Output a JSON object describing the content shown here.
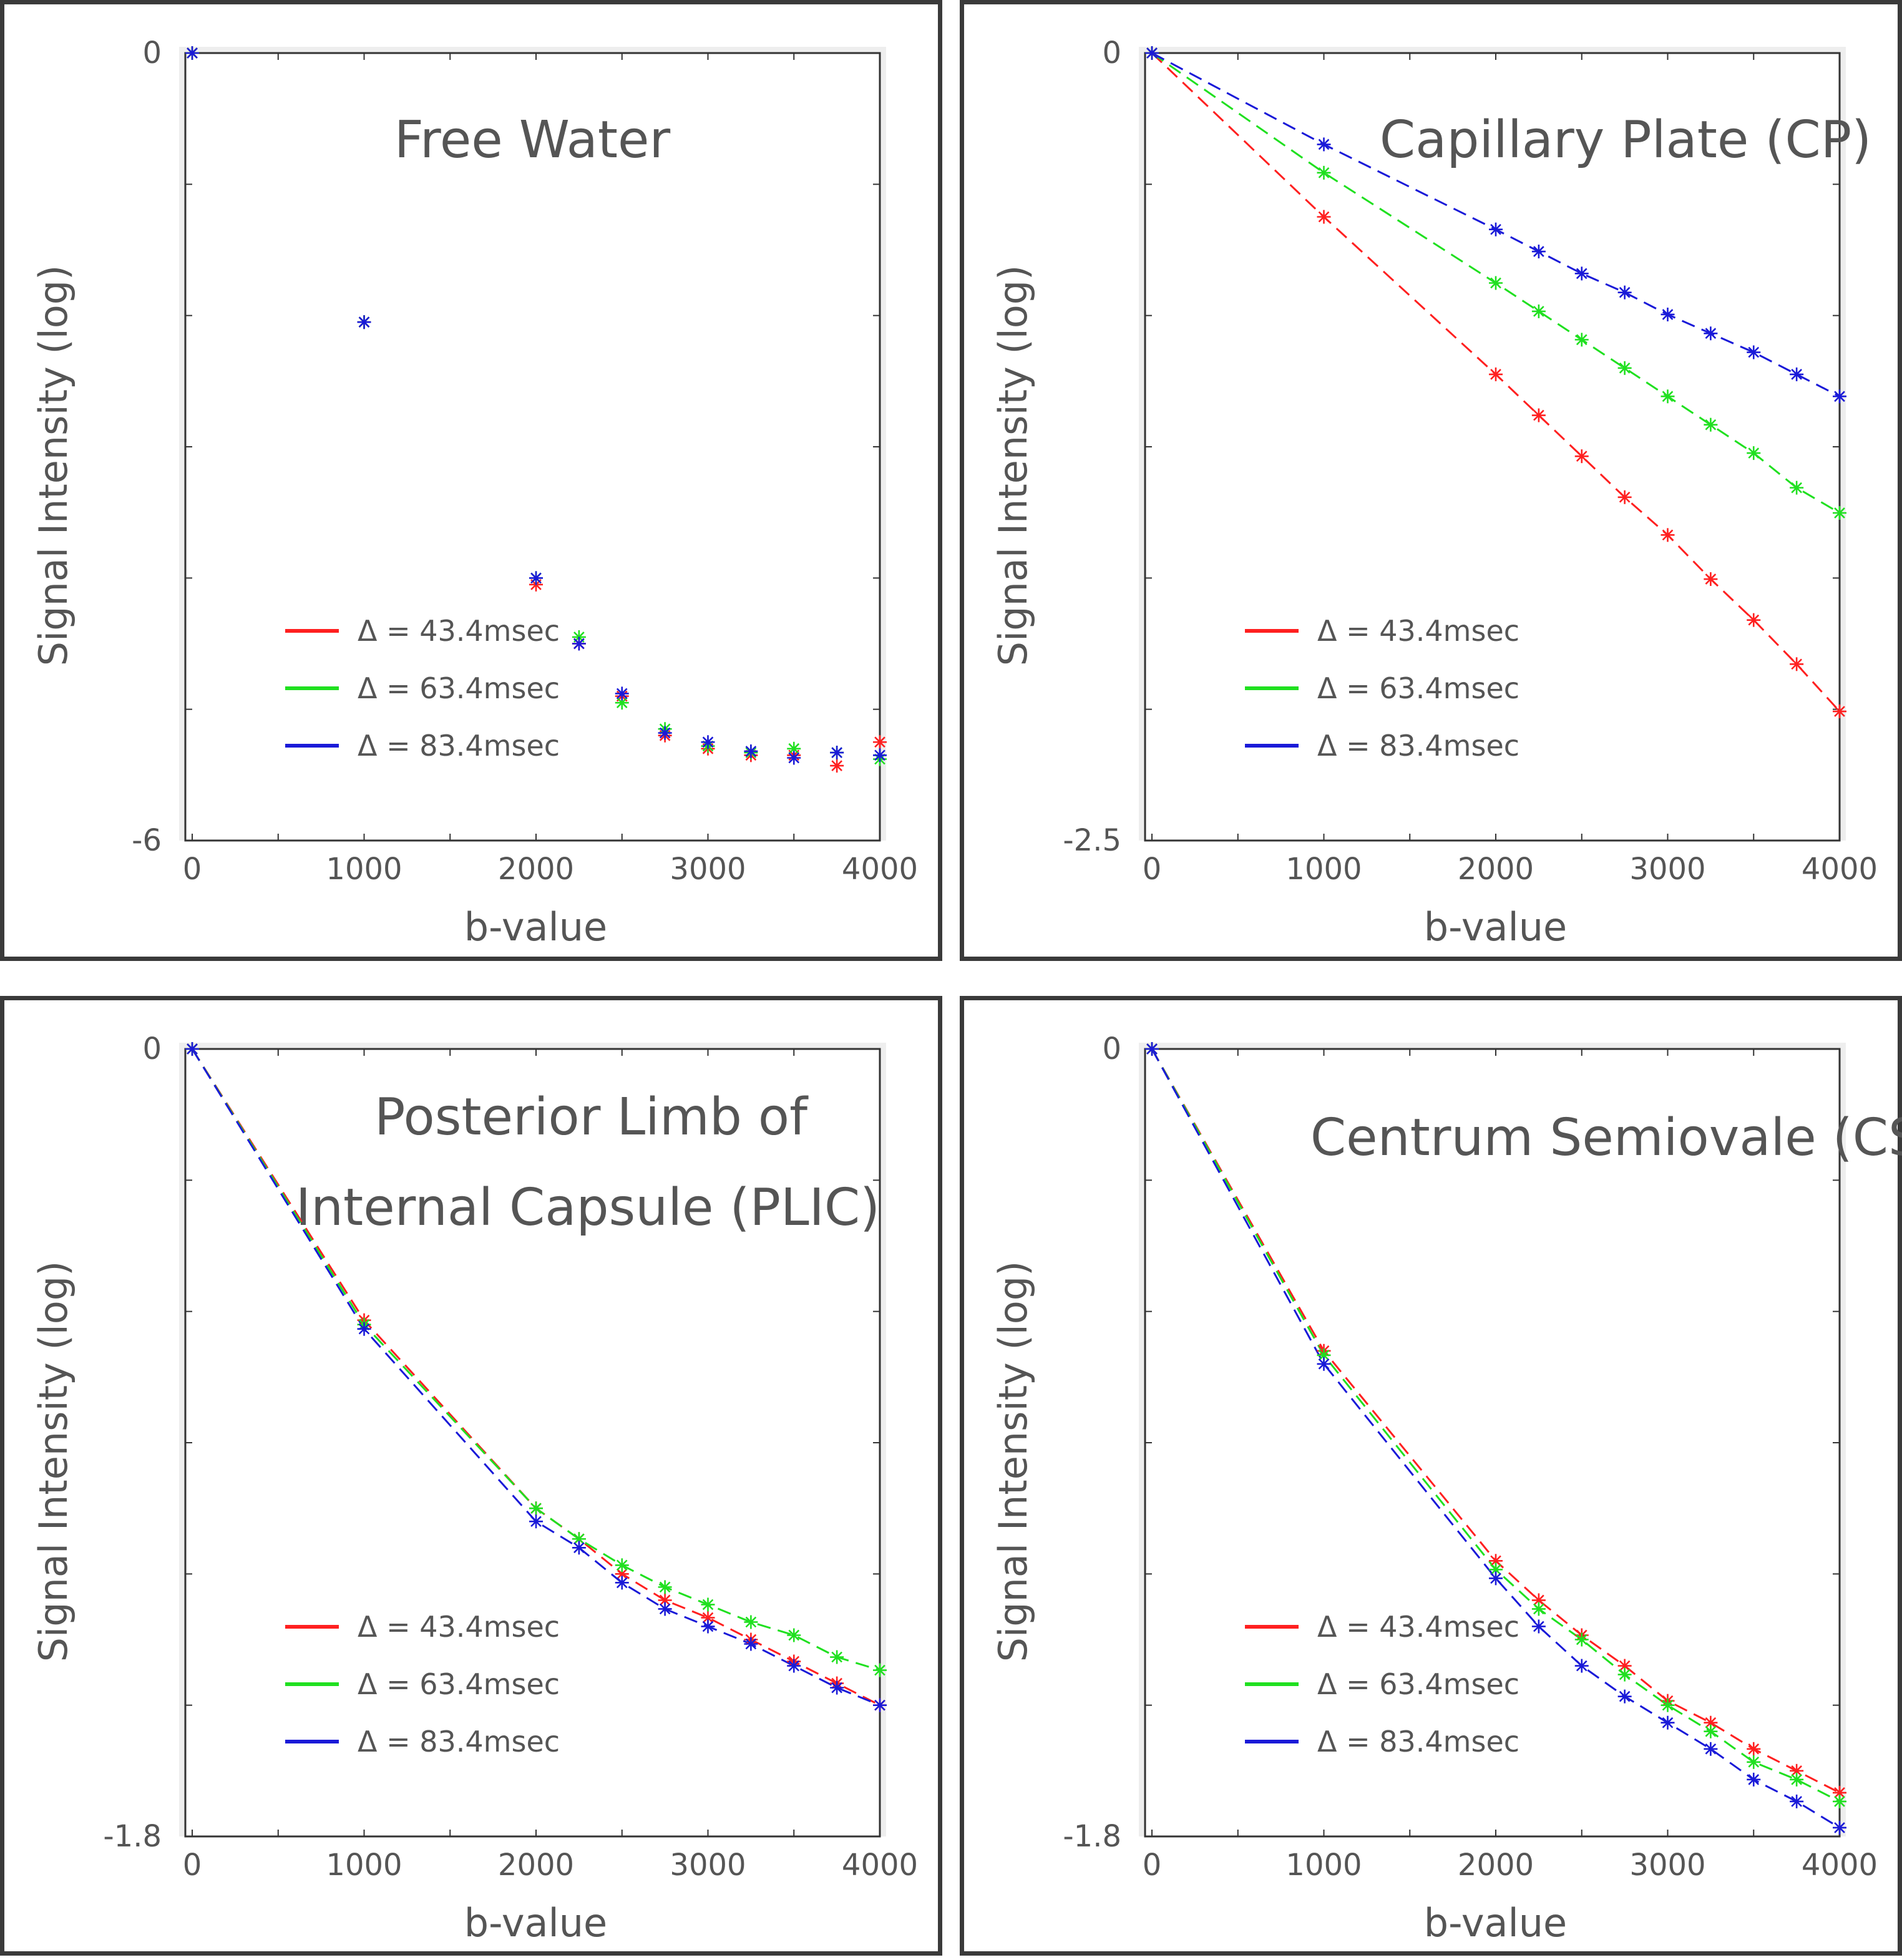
{
  "chart_data": [
    {
      "type": "scatter",
      "title_lines": [
        "Free Water"
      ],
      "xlabel": "b-value",
      "ylabel": "Signal Intensity (log)",
      "xlim": [
        -40,
        4000
      ],
      "ylim": [
        -6,
        0
      ],
      "xticks": [
        0,
        1000,
        2000,
        3000,
        4000
      ],
      "yticks": [
        0,
        -6
      ],
      "fit_lines": false,
      "legend": {
        "placement": "lower-left",
        "entries": [
          "Δ = 43.4msec",
          "Δ = 63.4msec",
          "Δ = 83.4msec"
        ]
      },
      "series": [
        {
          "name": "Δ = 43.4msec",
          "color": "#ff2020",
          "x": [
            0,
            1000,
            2000,
            2250,
            2500,
            2750,
            3000,
            3250,
            3500,
            3750,
            4000
          ],
          "y": [
            0,
            -2.05,
            -4.05,
            -4.5,
            -4.9,
            -5.2,
            -5.3,
            -5.35,
            -5.35,
            -5.43,
            -5.25
          ]
        },
        {
          "name": "Δ = 63.4msec",
          "color": "#20e020",
          "x": [
            0,
            1000,
            2000,
            2250,
            2500,
            2750,
            3000,
            3250,
            3500,
            3750,
            4000
          ],
          "y": [
            0,
            -2.05,
            -4.0,
            -4.45,
            -4.95,
            -5.15,
            -5.28,
            -5.33,
            -5.3,
            -5.33,
            -5.38
          ]
        },
        {
          "name": "Δ = 83.4msec",
          "color": "#1a1ad8",
          "x": [
            0,
            1000,
            2000,
            2250,
            2500,
            2750,
            3000,
            3250,
            3500,
            3750,
            4000
          ],
          "y": [
            0,
            -2.05,
            -4.0,
            -4.5,
            -4.88,
            -5.18,
            -5.25,
            -5.32,
            -5.37,
            -5.33,
            -5.35
          ]
        }
      ]
    },
    {
      "type": "line",
      "title_lines": [
        "Capillary Plate (CP)"
      ],
      "xlabel": "b-value",
      "ylabel": "Signal Intensity (log)",
      "xlim": [
        -40,
        4000
      ],
      "ylim": [
        -2.5,
        0
      ],
      "xticks": [
        0,
        1000,
        2000,
        3000,
        4000
      ],
      "yticks": [
        0,
        -2.5
      ],
      "fit_lines": true,
      "legend": {
        "placement": "lower-left",
        "entries": [
          "Δ = 43.4msec",
          "Δ = 63.4msec",
          "Δ = 83.4msec"
        ]
      },
      "series": [
        {
          "name": "Δ = 43.4msec",
          "color": "#ff2020",
          "x": [
            0,
            1000,
            2000,
            2250,
            2500,
            2750,
            3000,
            3250,
            3500,
            3750,
            4000
          ],
          "y": [
            0,
            -0.52,
            -1.02,
            -1.15,
            -1.28,
            -1.41,
            -1.53,
            -1.67,
            -1.8,
            -1.94,
            -2.09
          ]
        },
        {
          "name": "Δ = 63.4msec",
          "color": "#20e020",
          "x": [
            0,
            1000,
            2000,
            2250,
            2500,
            2750,
            3000,
            3250,
            3500,
            3750,
            4000
          ],
          "y": [
            0,
            -0.38,
            -0.73,
            -0.82,
            -0.91,
            -1.0,
            -1.09,
            -1.18,
            -1.27,
            -1.38,
            -1.46
          ]
        },
        {
          "name": "Δ = 83.4msec",
          "color": "#1a1ad8",
          "x": [
            0,
            1000,
            2000,
            2250,
            2500,
            2750,
            3000,
            3250,
            3500,
            3750,
            4000
          ],
          "y": [
            0,
            -0.29,
            -0.56,
            -0.63,
            -0.7,
            -0.76,
            -0.83,
            -0.89,
            -0.95,
            -1.02,
            -1.09
          ]
        }
      ]
    },
    {
      "type": "line",
      "title_lines": [
        "Posterior Limb of",
        "Internal Capsule (PLIC)"
      ],
      "xlabel": "b-value",
      "ylabel": "Signal Intensity (log)",
      "xlim": [
        -40,
        4000
      ],
      "ylim": [
        -1.8,
        0
      ],
      "xticks": [
        0,
        1000,
        2000,
        3000,
        4000
      ],
      "yticks": [
        0,
        -1.8
      ],
      "fit_lines": true,
      "legend": {
        "placement": "lower-left",
        "entries": [
          "Δ = 43.4msec",
          "Δ = 63.4msec",
          "Δ = 83.4msec"
        ]
      },
      "series": [
        {
          "name": "Δ = 43.4msec",
          "color": "#ff2020",
          "x": [
            0,
            1000,
            2000,
            2250,
            2500,
            2750,
            3000,
            3250,
            3500,
            3750,
            4000
          ],
          "y": [
            0,
            -0.62,
            -1.05,
            -1.12,
            -1.2,
            -1.26,
            -1.3,
            -1.35,
            -1.4,
            -1.45,
            -1.5
          ]
        },
        {
          "name": "Δ = 63.4msec",
          "color": "#20e020",
          "x": [
            0,
            1000,
            2000,
            2250,
            2500,
            2750,
            3000,
            3250,
            3500,
            3750,
            4000
          ],
          "y": [
            0,
            -0.63,
            -1.05,
            -1.12,
            -1.18,
            -1.23,
            -1.27,
            -1.31,
            -1.34,
            -1.39,
            -1.42
          ]
        },
        {
          "name": "Δ = 83.4msec",
          "color": "#1a1ad8",
          "x": [
            0,
            1000,
            2000,
            2250,
            2500,
            2750,
            3000,
            3250,
            3500,
            3750,
            4000
          ],
          "y": [
            0,
            -0.64,
            -1.08,
            -1.14,
            -1.22,
            -1.28,
            -1.32,
            -1.36,
            -1.41,
            -1.46,
            -1.5
          ]
        }
      ]
    },
    {
      "type": "line",
      "title_lines": [
        "Centrum Semiovale (CS)"
      ],
      "xlabel": "b-value",
      "ylabel": "Signal Intensity (log)",
      "xlim": [
        -40,
        4000
      ],
      "ylim": [
        -1.8,
        0
      ],
      "xticks": [
        0,
        1000,
        2000,
        3000,
        4000
      ],
      "yticks": [
        0,
        -1.8
      ],
      "fit_lines": true,
      "legend": {
        "placement": "lower-left",
        "entries": [
          "Δ = 43.4msec",
          "Δ = 63.4msec",
          "Δ = 83.4msec"
        ]
      },
      "series": [
        {
          "name": "Δ = 43.4msec",
          "color": "#ff2020",
          "x": [
            0,
            1000,
            2000,
            2250,
            2500,
            2750,
            3000,
            3250,
            3500,
            3750,
            4000
          ],
          "y": [
            0,
            -0.69,
            -1.17,
            -1.26,
            -1.34,
            -1.41,
            -1.49,
            -1.54,
            -1.6,
            -1.65,
            -1.7
          ]
        },
        {
          "name": "Δ = 63.4msec",
          "color": "#20e020",
          "x": [
            0,
            1000,
            2000,
            2250,
            2500,
            2750,
            3000,
            3250,
            3500,
            3750,
            4000
          ],
          "y": [
            0,
            -0.7,
            -1.19,
            -1.28,
            -1.35,
            -1.43,
            -1.5,
            -1.56,
            -1.63,
            -1.67,
            -1.72
          ]
        },
        {
          "name": "Δ = 83.4msec",
          "color": "#1a1ad8",
          "x": [
            0,
            1000,
            2000,
            2250,
            2500,
            2750,
            3000,
            3250,
            3500,
            3750,
            4000
          ],
          "y": [
            0,
            -0.72,
            -1.21,
            -1.32,
            -1.41,
            -1.48,
            -1.54,
            -1.6,
            -1.67,
            -1.72,
            -1.78
          ]
        }
      ]
    }
  ]
}
